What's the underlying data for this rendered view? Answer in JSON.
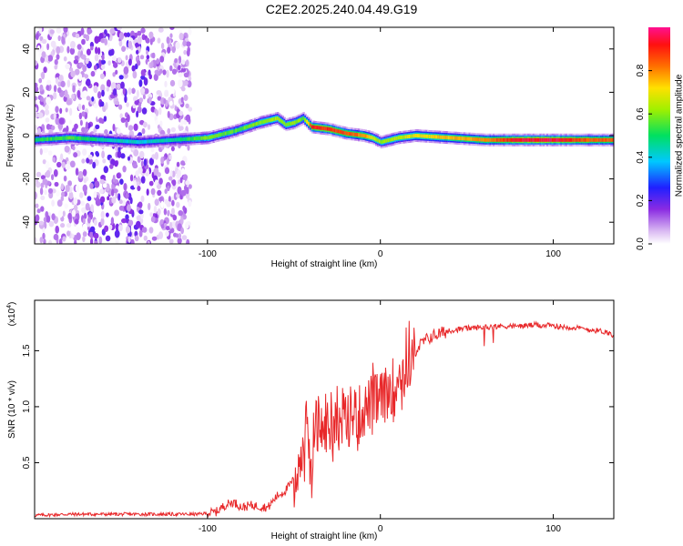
{
  "title": "C2E2.2025.240.04.49.G19",
  "chart_data": [
    {
      "type": "heatmap",
      "name": "spectrogram",
      "xlabel": "Height of straight line (km)",
      "ylabel": "Frequency (Hz)",
      "xlim": [
        -200,
        135
      ],
      "ylim": [
        -50,
        50
      ],
      "xticks": [
        -100,
        0,
        100
      ],
      "xtick_labels": [
        "-100",
        "0",
        "100"
      ],
      "yticks": [
        -40,
        -20,
        0,
        20,
        40
      ],
      "ytick_labels": [
        "-40",
        "-20",
        "0",
        "20",
        "40"
      ],
      "colorbar": {
        "label": "Normalized spectral amplitude",
        "range": [
          0,
          1
        ],
        "ticks": [
          0.0,
          0.2,
          0.4,
          0.6,
          0.8
        ],
        "tick_labels": [
          "0.0",
          "0.2",
          "0.4",
          "0.6",
          "0.8"
        ],
        "colormap": "rainbow (white-violet-blue-cyan-green-yellow-red-magenta)"
      },
      "ridge": {
        "description": "main spectral ridge (frequency vs height)",
        "x": [
          -200,
          -180,
          -160,
          -140,
          -120,
          -100,
          -85,
          -70,
          -60,
          -55,
          -50,
          -45,
          -40,
          -30,
          -20,
          -10,
          -5,
          0,
          10,
          20,
          40,
          60,
          80,
          100,
          120,
          135
        ],
        "y": [
          -2,
          -1,
          -2,
          -3,
          -2,
          -1,
          2,
          6,
          8,
          5,
          6,
          8,
          4,
          3,
          1,
          0,
          -1,
          -3,
          -1,
          0,
          -1,
          -2,
          -2,
          -2,
          -2,
          -2
        ],
        "amplitude": [
          0.5,
          0.55,
          0.45,
          0.4,
          0.45,
          0.6,
          0.55,
          0.6,
          0.65,
          0.6,
          0.62,
          0.55,
          0.9,
          0.9,
          0.85,
          0.8,
          0.7,
          0.6,
          0.65,
          0.7,
          0.75,
          0.8,
          0.95,
          0.95,
          0.85,
          0.85
        ]
      },
      "noise_region": {
        "x_from": -200,
        "x_to": -110,
        "amplitude": "0.0-0.2"
      }
    },
    {
      "type": "line",
      "name": "snr",
      "xlabel": "Height of straight line (km)",
      "ylabel": "SNR (10 * v/v)",
      "y_multiplier": "(x10",
      "y_multiplier_exp": "4",
      "y_multiplier_close": ")",
      "xlim": [
        -200,
        135
      ],
      "ylim": [
        0,
        1.95
      ],
      "xticks": [
        -100,
        0,
        100
      ],
      "xtick_labels": [
        "-100",
        "0",
        "100"
      ],
      "yticks": [
        0.5,
        1.0,
        1.5
      ],
      "ytick_labels": [
        "0.5",
        "1.0",
        "1.5"
      ],
      "series": [
        {
          "name": "SNR",
          "color": "#e8282a",
          "x": [
            -200,
            -180,
            -160,
            -140,
            -120,
            -105,
            -95,
            -90,
            -85,
            -80,
            -75,
            -70,
            -65,
            -60,
            -55,
            -50,
            -45,
            -42,
            -40,
            -38,
            -35,
            -30,
            -25,
            -20,
            -15,
            -10,
            -5,
            0,
            5,
            10,
            15,
            20,
            25,
            30,
            40,
            50,
            60,
            70,
            80,
            90,
            100,
            110,
            120,
            130,
            135
          ],
          "y": [
            0.03,
            0.04,
            0.04,
            0.04,
            0.04,
            0.04,
            0.06,
            0.12,
            0.15,
            0.1,
            0.12,
            0.11,
            0.1,
            0.2,
            0.25,
            0.35,
            0.6,
            0.7,
            0.5,
            0.85,
            0.8,
            0.8,
            0.9,
            0.85,
            0.95,
            0.95,
            1.05,
            1.05,
            1.15,
            1.25,
            1.35,
            1.5,
            1.58,
            1.63,
            1.68,
            1.7,
            1.71,
            1.72,
            1.72,
            1.73,
            1.72,
            1.71,
            1.69,
            1.67,
            1.64
          ]
        }
      ]
    }
  ]
}
